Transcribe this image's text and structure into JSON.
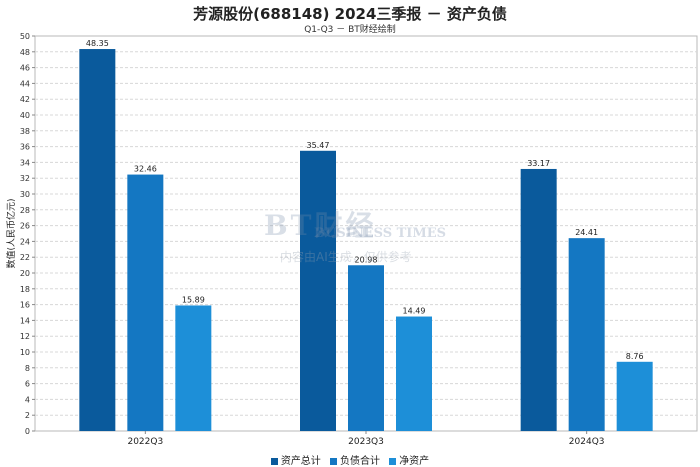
{
  "title": "芳源股份(688148) 2024三季报 － 资产负债",
  "subtitle": "Q1-Q3 － BT财经绘制",
  "watermark": {
    "logo_text": "BT财经",
    "sub_text": "BUSINESS TIMES",
    "note": "内容由AI生成，仅供参考"
  },
  "chart_data": {
    "type": "bar",
    "title": "芳源股份(688148) 2024三季报 － 资产负债",
    "subtitle": "Q1-Q3 － BT财经绘制",
    "categories": [
      "2022Q3",
      "2023Q3",
      "2024Q3"
    ],
    "series": [
      {
        "name": "资产总计",
        "values": [
          48.35,
          35.47,
          33.17
        ],
        "color": "#0a5a9c"
      },
      {
        "name": "负债合计",
        "values": [
          32.46,
          20.98,
          24.41
        ],
        "color": "#1477c2"
      },
      {
        "name": "净资产",
        "values": [
          15.89,
          14.49,
          8.76
        ],
        "color": "#1d8fd8"
      }
    ],
    "xlabel": "",
    "ylabel": "数值(人民币亿元)",
    "ylim": [
      0,
      50
    ],
    "ytick_step": 2,
    "grid": true,
    "legend_position": "bottom"
  }
}
